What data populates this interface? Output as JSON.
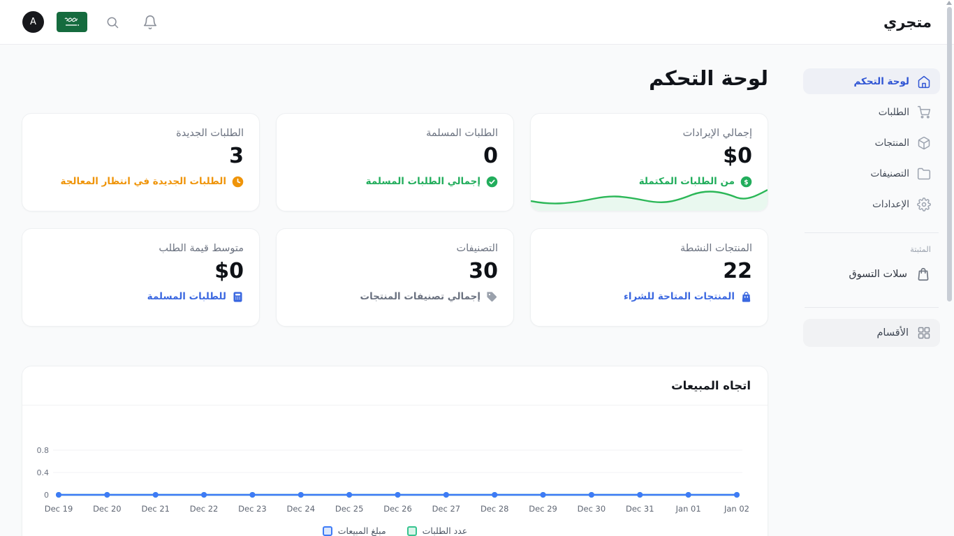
{
  "app": {
    "title": "متجري",
    "avatar_initial": "A",
    "language_flag": "saudi-arabia"
  },
  "sidebar": {
    "items": [
      {
        "label": "لوحة التحكم",
        "icon": "home-icon",
        "active": true
      },
      {
        "label": "الطلبات",
        "icon": "cart-icon",
        "active": false
      },
      {
        "label": "المنتجات",
        "icon": "package-icon",
        "active": false
      },
      {
        "label": "التصنيفات",
        "icon": "folder-icon",
        "active": false
      },
      {
        "label": "الإعدادات",
        "icon": "gear-icon",
        "active": false
      }
    ],
    "pinned_title": "المثبتة",
    "pinned_items": [
      {
        "label": "سلات التسوق",
        "icon": "shopping-bag-icon"
      }
    ],
    "sections_label": "الأقسام"
  },
  "main": {
    "heading": "لوحة التحكم",
    "cards": [
      {
        "title": "إجمالي الإيرادات",
        "value": "$0",
        "subtitle": "من الطلبات المكتملة",
        "icon": "dollar-circle-icon",
        "accent": "#22ad5c",
        "sparkline": true
      },
      {
        "title": "الطلبات المسلمة",
        "value": "0",
        "subtitle": "إجمالي الطلبات المسلمة",
        "icon": "check-circle-icon",
        "accent": "#22ad5c"
      },
      {
        "title": "الطلبات الجديدة",
        "value": "3",
        "subtitle": "الطلبات الجديدة في انتظار المعالجة",
        "icon": "clock-icon",
        "accent": "#ef9409"
      },
      {
        "title": "المنتجات النشطة",
        "value": "22",
        "subtitle": "المنتجات المتاحة للشراء",
        "icon": "bag-icon",
        "accent": "#3b68e0"
      },
      {
        "title": "التصنيفات",
        "value": "30",
        "subtitle": "إجمالي تصنيفات المنتجات",
        "icon": "tag-icon",
        "accent": "#6b7280"
      },
      {
        "title": "متوسط قيمة الطلب",
        "value": "$0",
        "subtitle": "للطلبات المسلمة",
        "icon": "calculator-icon",
        "accent": "#3b68e0"
      }
    ]
  },
  "chart_data": {
    "type": "line",
    "title": "اتجاه المبيعات",
    "x": [
      "Dec 19",
      "Dec 20",
      "Dec 21",
      "Dec 22",
      "Dec 23",
      "Dec 24",
      "Dec 25",
      "Dec 26",
      "Dec 27",
      "Dec 28",
      "Dec 29",
      "Dec 30",
      "Dec 31",
      "Jan 01",
      "Jan 02"
    ],
    "series": [
      {
        "name": "مبلغ المبيعات",
        "color": "#3e7bf6",
        "swatch_fill": "#dbe7fd",
        "values": [
          0,
          0,
          0,
          0,
          0,
          0,
          0,
          0,
          0,
          0,
          0,
          0,
          0,
          0,
          0
        ]
      },
      {
        "name": "عدد الطلبات",
        "color": "#36c48f",
        "swatch_fill": "#d9f5ea",
        "values": [
          0,
          0,
          0,
          0,
          0,
          0,
          0,
          0,
          0,
          0,
          0,
          0,
          0,
          0,
          0
        ]
      }
    ],
    "yticks": [
      0,
      0.4,
      0.8
    ],
    "ylim": [
      0,
      0.96
    ],
    "grid": true,
    "legend_position": "bottom"
  },
  "colors": {
    "primary": "#2f55d4",
    "green": "#22ad5c",
    "orange": "#ef9409",
    "blue": "#3b68e0",
    "sparkline_stroke": "#2bb757",
    "sparkline_fill": "#e9f8ef"
  }
}
